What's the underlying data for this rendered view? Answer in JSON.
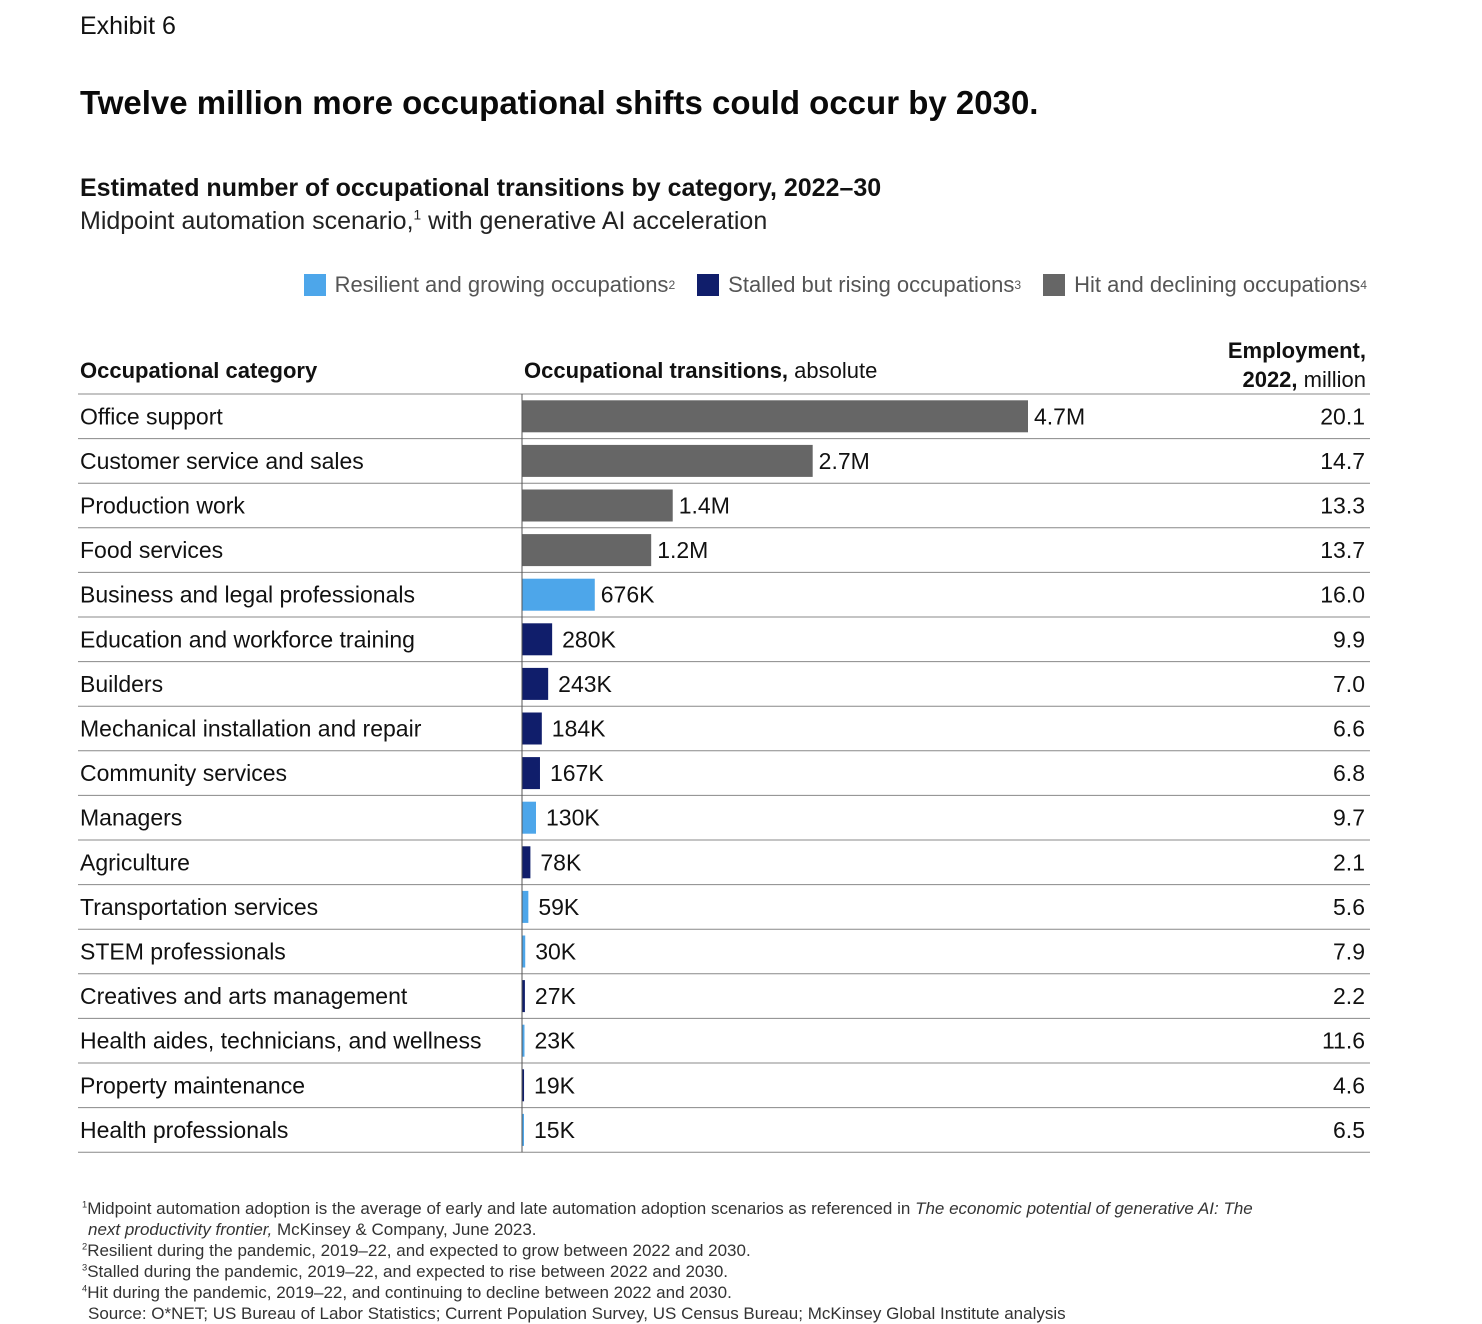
{
  "exhibit": "Exhibit 6",
  "title": "Twelve million more occupational shifts could occur by 2030.",
  "subtitle": "Estimated number of occupational transitions by category, 2022–30",
  "subtitle2_pre": "Midpoint automation scenario,",
  "subtitle2_sup": "1",
  "subtitle2_post": " with generative AI acceleration",
  "legend": [
    {
      "label": "Resilient and growing occupations",
      "sup": "2",
      "color": "#4da6ea"
    },
    {
      "label": "Stalled but rising occupations",
      "sup": "3",
      "color": "#101e6b"
    },
    {
      "label": "Hit and declining occupations",
      "sup": "4",
      "color": "#666666"
    }
  ],
  "headers": {
    "category": "Occupational category",
    "transitions_bold": "Occupational transitions,",
    "transitions_rest": " absolute",
    "employment_line1": "Employment,",
    "employment_line2_bold": "2022,",
    "employment_line2_rest": " million"
  },
  "chart_data": {
    "type": "bar",
    "orientation": "horizontal",
    "title": "Estimated number of occupational transitions by category, 2022–30",
    "categories": [
      "Office support",
      "Customer service and sales",
      "Production work",
      "Food services",
      "Business and legal professionals",
      "Education and workforce training",
      "Builders",
      "Mechanical installation and repair",
      "Community services",
      "Managers",
      "Agriculture",
      "Transportation services",
      "STEM professionals",
      "Creatives and arts management",
      "Health aides, technicians, and wellness",
      "Property maintenance",
      "Health professionals"
    ],
    "values": [
      4700000,
      2700000,
      1400000,
      1200000,
      676000,
      280000,
      243000,
      184000,
      167000,
      130000,
      78000,
      59000,
      30000,
      27000,
      23000,
      19000,
      15000
    ],
    "labels": [
      "4.7M",
      "2.7M",
      "1.4M",
      "1.2M",
      "676K",
      "280K",
      "243K",
      "184K",
      "167K",
      "130K",
      "78K",
      "59K",
      "30K",
      "27K",
      "23K",
      "19K",
      "15K"
    ],
    "groups": [
      "hit",
      "hit",
      "hit",
      "hit",
      "resilient",
      "stalled",
      "stalled",
      "stalled",
      "stalled",
      "resilient",
      "stalled",
      "resilient",
      "resilient",
      "stalled",
      "resilient",
      "stalled",
      "resilient"
    ],
    "group_colors": {
      "resilient": "#4da6ea",
      "stalled": "#101e6b",
      "hit": "#666666"
    },
    "employment_2022_million": [
      "20.1",
      "14.7",
      "13.3",
      "13.7",
      "16.0",
      "9.9",
      "7.0",
      "6.6",
      "6.8",
      "9.7",
      "2.1",
      "5.6",
      "7.9",
      "2.2",
      "11.6",
      "4.6",
      "6.5"
    ],
    "xlim": [
      0,
      4700000
    ],
    "grid": false,
    "legend_position": "top-right"
  },
  "footnotes": [
    {
      "pre": "Midpoint automation adoption is the average of early and late automation adoption scenarios as referenced in ",
      "italic": "The economic potential of generative AI: The",
      "sup": "1"
    },
    {
      "italic": "next productivity frontier,",
      "post": " McKinsey & Company, June 2023."
    },
    {
      "sup": "2",
      "text": "Resilient during the pandemic, 2019–22, and expected to grow between 2022 and 2030."
    },
    {
      "sup": "3",
      "text": "Stalled during the pandemic, 2019–22, and expected to rise between 2022 and 2030."
    },
    {
      "sup": "4",
      "text": "Hit during the pandemic, 2019–22, and continuing to decline between 2022 and 2030."
    },
    {
      "text": "Source: O*NET; US Bureau of Labor Statistics; Current Population Survey, US Census Bureau; McKinsey Global Institute analysis"
    }
  ]
}
